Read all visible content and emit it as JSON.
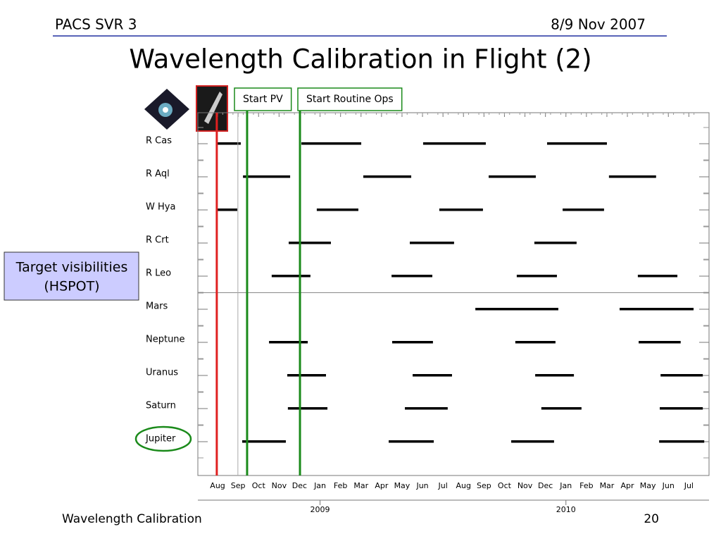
{
  "header": {
    "left": "PACS SVR 3",
    "right": "8/9 Nov 2007"
  },
  "title": "Wavelength Calibration in Flight (2)",
  "footer": {
    "left": "Wavelength Calibration",
    "right": "20"
  },
  "side_box": {
    "lines": [
      "Target visibilities",
      "(HSPOT)"
    ]
  },
  "chart_data": {
    "type": "timeline",
    "categories": [
      "Aug",
      "Sep",
      "Oct",
      "Nov",
      "Dec",
      "Jan",
      "Feb",
      "Mar",
      "Apr",
      "May",
      "Jun",
      "Jul",
      "Aug",
      "Sep",
      "Oct",
      "Nov",
      "Dec",
      "Jan",
      "Feb",
      "Mar",
      "Apr",
      "May",
      "Jun",
      "Jul"
    ],
    "years": [
      {
        "label": "2009",
        "at": 5
      },
      {
        "label": "2010",
        "at": 17
      }
    ],
    "bar_color": "#000000",
    "rows": [
      {
        "name": "R Cas",
        "windows": [
          [
            0.5,
            1.63
          ],
          [
            4.59,
            7.51
          ],
          [
            10.53,
            13.59
          ],
          [
            16.58,
            19.5
          ]
        ]
      },
      {
        "name": "R Aql",
        "windows": [
          [
            1.74,
            4.04
          ],
          [
            7.61,
            9.95
          ],
          [
            13.73,
            16.03
          ],
          [
            19.6,
            21.9
          ]
        ]
      },
      {
        "name": "W Hya",
        "windows": [
          [
            0.5,
            1.46
          ],
          [
            5.34,
            7.37
          ],
          [
            11.32,
            13.45
          ],
          [
            17.34,
            19.36
          ]
        ]
      },
      {
        "name": "R Crt",
        "windows": [
          [
            3.97,
            6.03
          ],
          [
            9.88,
            12.04
          ],
          [
            15.96,
            18.02
          ]
        ]
      },
      {
        "name": "R Leo",
        "windows": [
          [
            3.14,
            5.03
          ],
          [
            8.99,
            10.98
          ],
          [
            15.1,
            17.06
          ],
          [
            21.01,
            22.94
          ]
        ]
      },
      {
        "name": "Mars",
        "windows": [
          [
            13.08,
            17.13
          ],
          [
            20.12,
            23.73
          ]
        ]
      },
      {
        "name": "Neptune",
        "windows": [
          [
            3.01,
            4.9
          ],
          [
            9.02,
            11.01
          ],
          [
            15.03,
            16.99
          ],
          [
            21.05,
            23.1
          ]
        ]
      },
      {
        "name": "Uranus",
        "windows": [
          [
            3.9,
            5.79
          ],
          [
            10.02,
            11.94
          ],
          [
            16,
            17.89
          ],
          [
            22.12,
            24.18
          ]
        ]
      },
      {
        "name": "Saturn",
        "windows": [
          [
            3.93,
            5.86
          ],
          [
            9.64,
            11.73
          ],
          [
            16.3,
            18.26
          ],
          [
            22.08,
            24.18
          ]
        ]
      },
      {
        "name": "Jupiter",
        "windows": [
          [
            1.7,
            3.83
          ],
          [
            8.85,
            11.05
          ],
          [
            14.83,
            16.92
          ],
          [
            22.05,
            24.25
          ]
        ]
      }
    ],
    "markers": [
      {
        "x": 0.46,
        "color": "#e02020"
      },
      {
        "x": 1.49,
        "color": "#aaaaaa"
      },
      {
        "x": 1.94,
        "color": "#1a8a1a",
        "label": "Start PV"
      },
      {
        "x": 4.52,
        "color": "#1a8a1a",
        "label": "Start Routine Ops"
      }
    ]
  }
}
